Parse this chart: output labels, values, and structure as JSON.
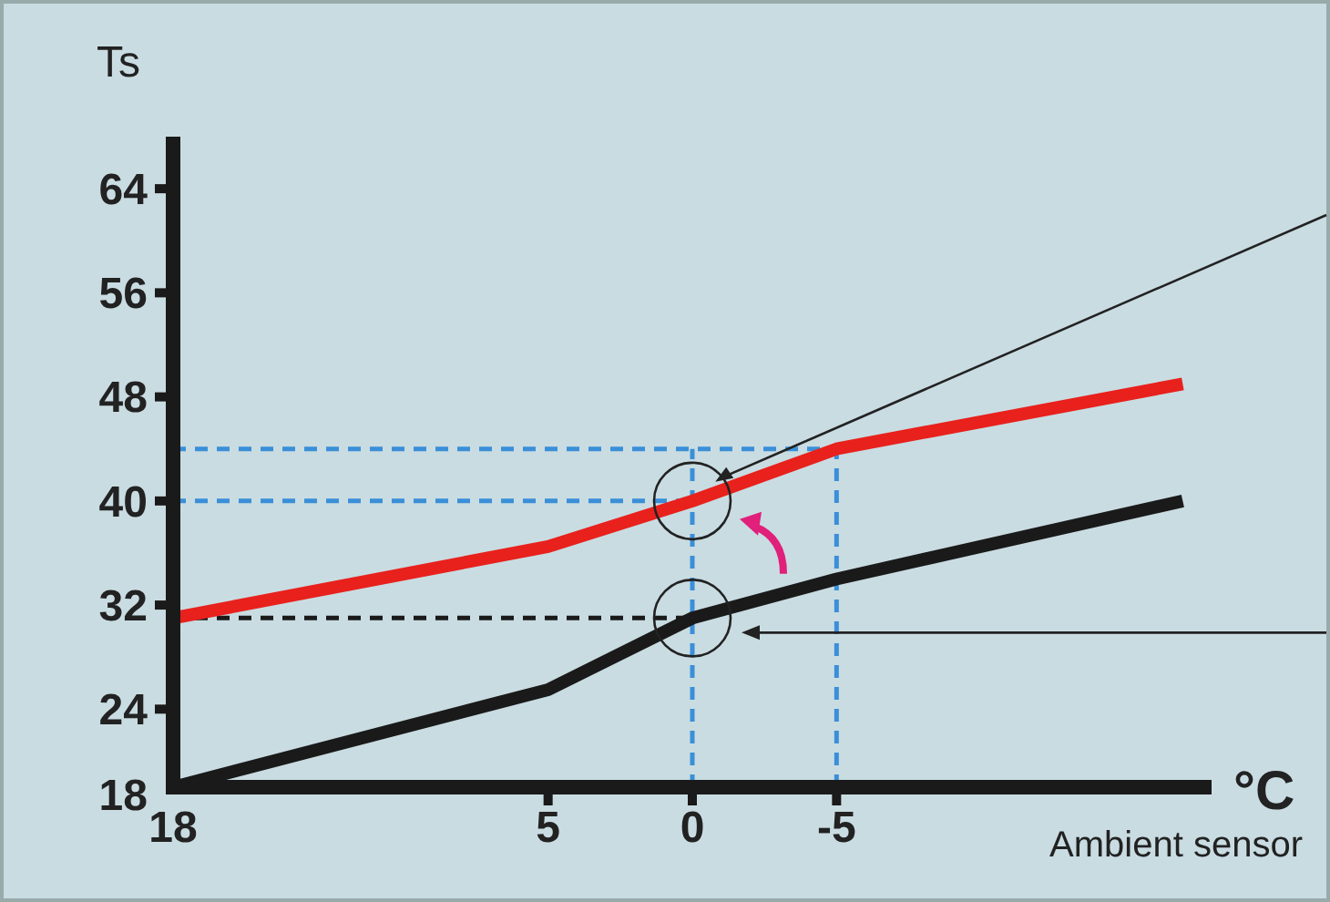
{
  "chart_data": {
    "type": "line",
    "ylabel": "Ts",
    "xlabel": "°C",
    "annotations": [
      "Ambient sensor"
    ],
    "xlim": [
      18,
      -18
    ],
    "xticks": [
      18,
      5,
      0,
      -5
    ],
    "ylim": [
      18,
      68
    ],
    "yticks": [
      18,
      24,
      32,
      40,
      48,
      56,
      64
    ],
    "grid": false,
    "marker": "none",
    "line_style": "solid",
    "series": [
      {
        "color": "#e8211c",
        "x": [
          18,
          5,
          0,
          -5,
          -17
        ],
        "values": [
          31,
          36.5,
          40,
          44,
          49
        ]
      },
      {
        "color": "#1a1a1a",
        "x": [
          18,
          5,
          0,
          -5,
          -17
        ],
        "values": [
          18,
          25.5,
          31,
          34,
          40
        ]
      }
    ],
    "ref_lines": [
      {
        "axis": "y",
        "value": 44,
        "color": "#3a8fd8",
        "line_style": "dashed"
      },
      {
        "axis": "y",
        "value": 40,
        "color": "#3a8fd8",
        "line_style": "dashed"
      },
      {
        "axis": "y",
        "value": 31,
        "color": "#1a1a1a",
        "line_style": "dashed"
      },
      {
        "axis": "x",
        "value": 0,
        "color": "#3a8fd8",
        "line_style": "dashed"
      },
      {
        "axis": "x",
        "value": -5,
        "color": "#3a8fd8",
        "line_style": "dashed"
      }
    ]
  }
}
